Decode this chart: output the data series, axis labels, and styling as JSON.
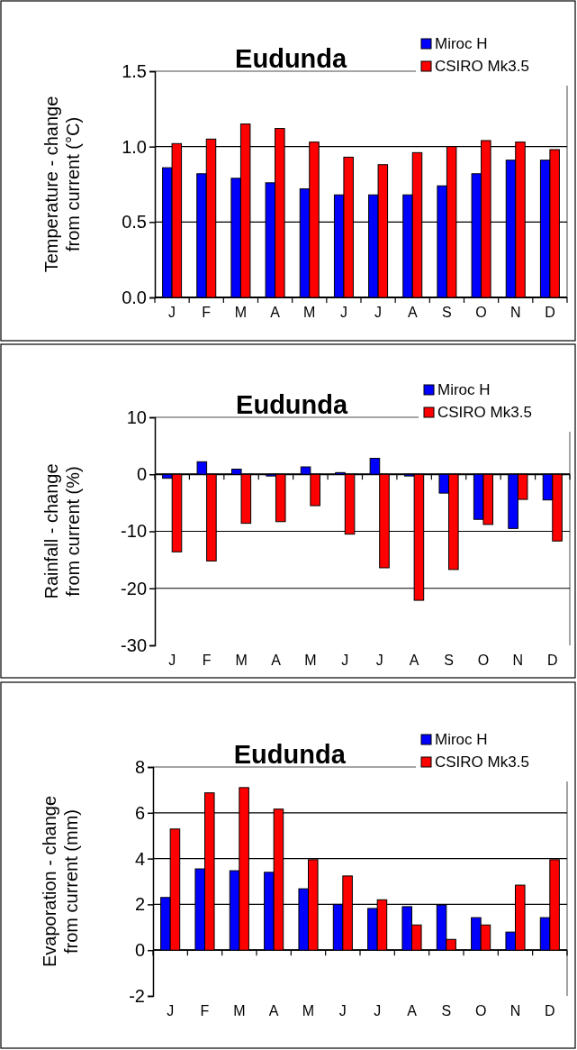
{
  "chart_data": [
    {
      "type": "bar",
      "title": "Eudunda",
      "ylabel": "Temperature - change from current (°C)",
      "categories": [
        "J",
        "F",
        "M",
        "A",
        "M",
        "J",
        "J",
        "A",
        "S",
        "O",
        "N",
        "D"
      ],
      "series": [
        {
          "name": "Miroc H",
          "color": "#0000ff",
          "values": [
            0.86,
            0.82,
            0.79,
            0.76,
            0.72,
            0.68,
            0.68,
            0.68,
            0.74,
            0.82,
            0.91,
            0.91
          ]
        },
        {
          "name": "CSIRO Mk3.5",
          "color": "#ff0000",
          "values": [
            1.02,
            1.05,
            1.15,
            1.12,
            1.03,
            0.93,
            0.88,
            0.96,
            1.0,
            1.04,
            1.03,
            0.98
          ]
        }
      ],
      "ylim": [
        0,
        1.5
      ],
      "yticks": [
        {
          "value": 0,
          "label": "0.0"
        },
        0.5,
        {
          "value": 1,
          "label": "1.0"
        },
        1.5
      ],
      "grid": "y",
      "legend": "top right"
    },
    {
      "type": "bar",
      "title": "Eudunda",
      "ylabel": "Rainfall - change from current (%)",
      "categories": [
        "J",
        "F",
        "M",
        "A",
        "M",
        "J",
        "J",
        "A",
        "S",
        "O",
        "N",
        "D"
      ],
      "series": [
        {
          "name": "Miroc H",
          "color": "#0000ff",
          "values": [
            -0.7,
            2.2,
            0.9,
            -0.3,
            1.3,
            0.3,
            2.8,
            -0.3,
            -3.3,
            -7.9,
            -9.5,
            -4.5
          ]
        },
        {
          "name": "CSIRO Mk3.5",
          "color": "#ff0000",
          "values": [
            -13.6,
            -15.2,
            -8.6,
            -8.3,
            -5.5,
            -10.5,
            -16.4,
            -22.1,
            -16.7,
            -8.8,
            -4.4,
            -11.7
          ]
        }
      ],
      "ylim": [
        -30,
        10
      ],
      "yticks": [
        -30,
        -20,
        -10,
        0,
        10
      ],
      "grid": "y",
      "legend": "top right"
    },
    {
      "type": "bar",
      "title": "Eudunda",
      "ylabel": "Evaporation - change from current (mm)",
      "categories": [
        "J",
        "F",
        "M",
        "A",
        "M",
        "J",
        "J",
        "A",
        "S",
        "O",
        "N",
        "D"
      ],
      "series": [
        {
          "name": "Miroc H",
          "color": "#0000ff",
          "values": [
            2.3,
            3.55,
            3.47,
            3.4,
            2.68,
            2.0,
            1.82,
            1.9,
            1.97,
            1.42,
            0.79,
            1.42
          ]
        },
        {
          "name": "CSIRO Mk3.5",
          "color": "#ff0000",
          "values": [
            5.29,
            6.87,
            7.1,
            6.16,
            3.95,
            3.24,
            2.2,
            1.1,
            0.47,
            1.1,
            2.84,
            3.95
          ]
        }
      ],
      "ylim": [
        -2,
        8
      ],
      "yticks": [
        -2,
        0,
        2,
        4,
        6,
        8
      ],
      "grid": "y",
      "legend": "top right"
    }
  ]
}
